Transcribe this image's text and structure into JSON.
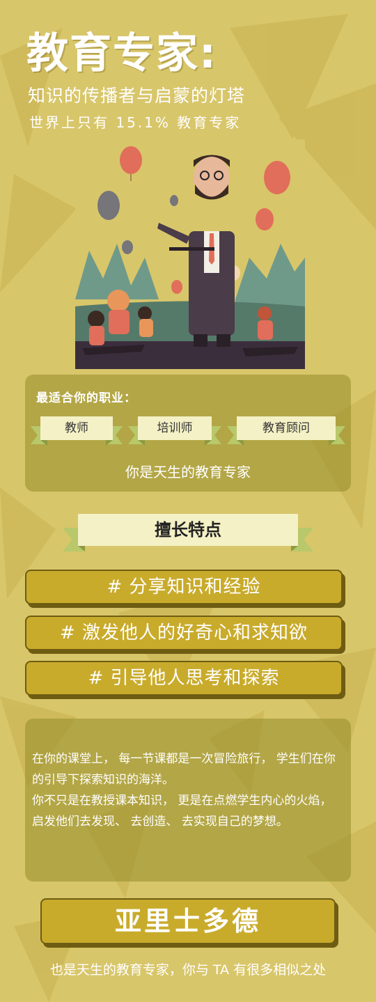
{
  "header": {
    "title": "教育专家:",
    "subtitle": "知识的传播者与启蒙的灯塔",
    "stat": "世界上只有 15.1% 教育专家"
  },
  "careers": {
    "label": "最适合你的职业：",
    "items": [
      "教师",
      "培训师",
      "教育顾问"
    ],
    "tagline": "你是天生的教育专家"
  },
  "strengths": {
    "title": "擅长特点",
    "items": [
      "# 分享知识和经验",
      "# 激发他人的好奇心和求知欲",
      "# 引导他人思考和探索"
    ]
  },
  "description": {
    "p1": "在你的课堂上， 每一节课都是一次冒险旅行， 学生们在你的引导下探索知识的海洋。",
    "p2": "你不只是在教授课本知识， 更是在点燃学生内心的火焰， 启发他们去发现、 去创造、 去实现自己的梦想。"
  },
  "famous": {
    "name": "亚里士多德",
    "footer": "也是天生的教育专家，你与 TA 有很多相似之处"
  },
  "colors": {
    "background": "#d8c66a",
    "panel": "#a39a3a",
    "ribbon": "#f4f1c6",
    "button": "#c9ab2c"
  }
}
